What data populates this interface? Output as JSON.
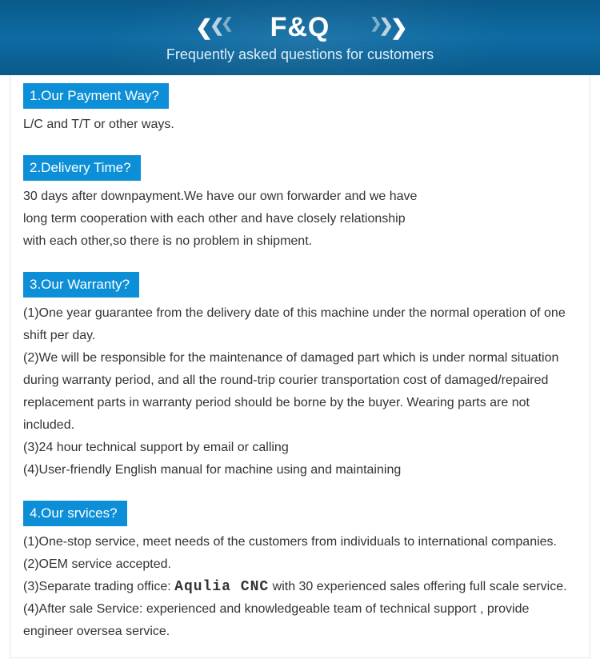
{
  "banner": {
    "title": "F&Q",
    "subtitle": "Frequently asked questions for customers",
    "bg_gradient": [
      "#0a5a8a",
      "#0d6ba3",
      "#0a5a8a"
    ],
    "title_color": "#ffffff",
    "subtitle_color": "#dbeefb",
    "chevron_color": "#ffffff"
  },
  "header_bg": "#0d8fd8",
  "header_text_color": "#ffffff",
  "body_text_color": "#333333",
  "faqs": [
    {
      "header": "1.Our Payment Way?",
      "lines": [
        "L/C and T/T or other ways."
      ]
    },
    {
      "header": "2.Delivery Time?",
      "lines": [
        "30 days after downpayment.We have our own forwarder and we have",
        "long term cooperation with each other and have closely relationship",
        "with each other,so there is no problem in shipment."
      ]
    },
    {
      "header": "3.Our Warranty?",
      "lines": [
        "(1)One year guarantee from the delivery date of this machine under the normal operation of one shift per day.",
        "(2)We will be responsible for the maintenance of damaged part which is under normal situation during warranty period, and all the round-trip courier transportation cost of damaged/repaired replacement parts in warranty period should be borne by the buyer. Wearing parts are not included.",
        "(3)24 hour technical support by email or calling",
        "(4)User-friendly English manual for machine using and maintaining"
      ]
    },
    {
      "header": "4.Our srvices?",
      "lines": [
        "(1)One-stop service, meet needs of the customers from individuals to international companies.",
        "(2)OEM service accepted."
      ],
      "line3_prefix": "(3)Separate trading office: ",
      "line3_brand": "Aqulia CNC",
      "line3_suffix": " with 30 experienced sales offering full scale service.",
      "line4": "(4)After sale Service: experienced and knowledgeable team of technical support , provide engineer oversea service."
    }
  ]
}
